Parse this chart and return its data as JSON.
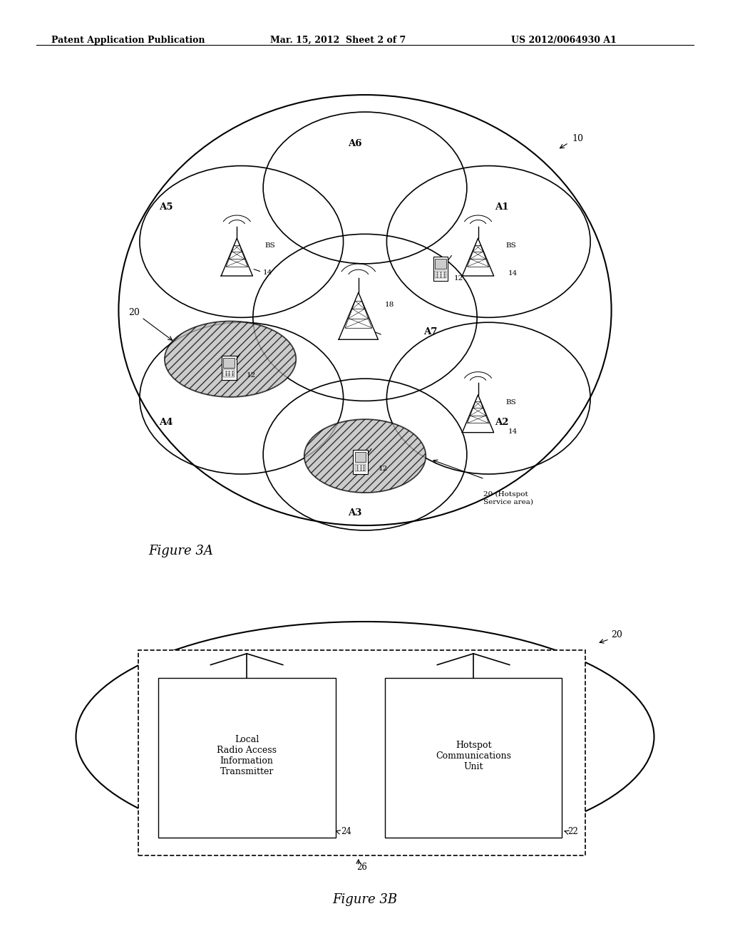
{
  "title_left": "Patent Application Publication",
  "title_mid": "Mar. 15, 2012  Sheet 2 of 7",
  "title_right": "US 2012/0064930 A1",
  "fig3a_label": "Figure 3A",
  "fig3b_label": "Figure 3B",
  "background_color": "#ffffff"
}
